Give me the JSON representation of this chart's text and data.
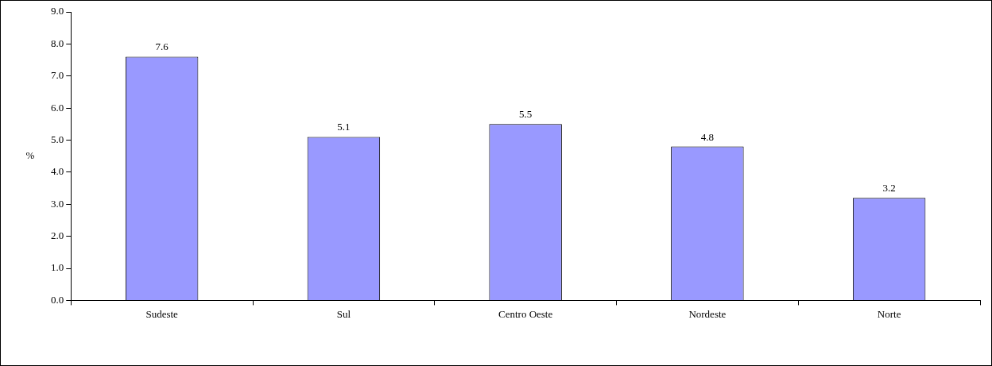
{
  "chart_data": {
    "type": "bar",
    "ylabel": "%",
    "categories": [
      "Sudeste",
      "Sul",
      "Centro Oeste",
      "Nordeste",
      "Norte"
    ],
    "values": [
      7.6,
      5.1,
      5.5,
      4.8,
      3.2
    ],
    "color": "#9999ff",
    "ylim": [
      0,
      9
    ],
    "yticks": [
      {
        "value": 0,
        "label": "0.0"
      },
      {
        "value": 1,
        "label": "1.0"
      },
      {
        "value": 2,
        "label": "2.0"
      },
      {
        "value": 3,
        "label": "3.0"
      },
      {
        "value": 4,
        "label": "4.0"
      },
      {
        "value": 5,
        "label": "5.0"
      },
      {
        "value": 6,
        "label": "6.0"
      },
      {
        "value": 7,
        "label": "7.0"
      },
      {
        "value": 8,
        "label": "8.0"
      },
      {
        "value": 9,
        "label": "9.0"
      }
    ],
    "grid": false,
    "legend": false,
    "data_labels": true
  }
}
